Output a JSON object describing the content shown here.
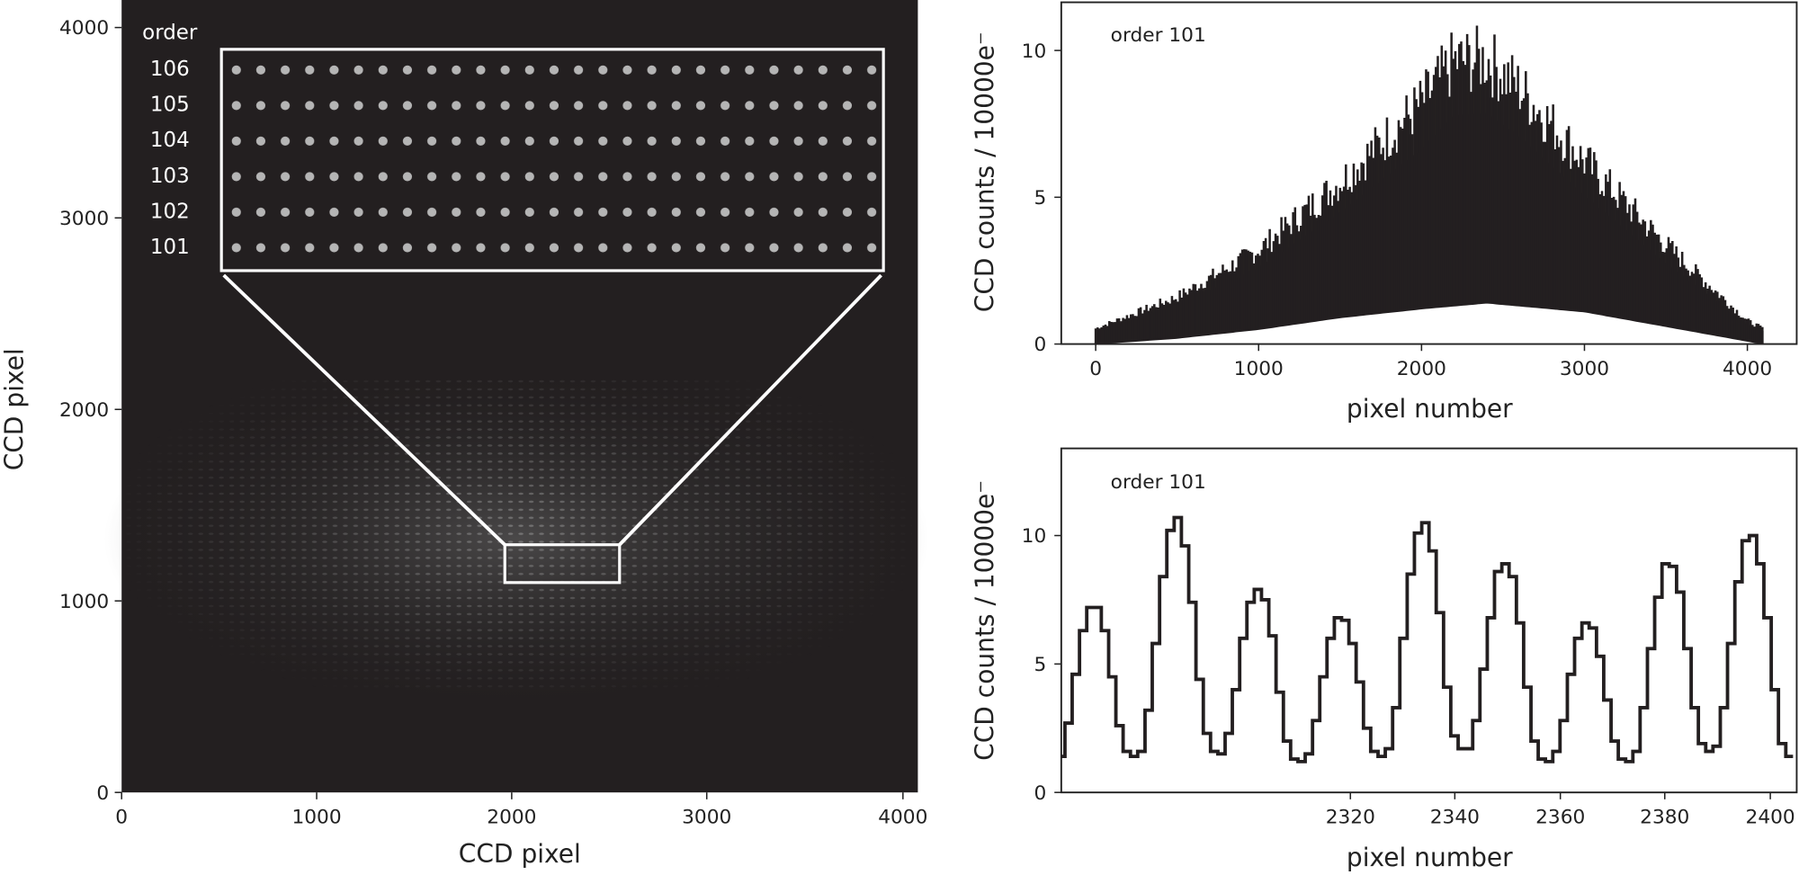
{
  "chart_data": [
    {
      "type": "heatmap",
      "title": "",
      "xlabel": "CCD pixel",
      "ylabel": "CCD pixel",
      "xlim": [
        0,
        4150
      ],
      "ylim": [
        0,
        4150
      ],
      "xticks": [
        "0",
        "1000",
        "2000",
        "3000",
        "4000"
      ],
      "yticks": [
        "0",
        "1000",
        "2000",
        "3000",
        "4000"
      ],
      "colormap": "gray",
      "description": "Simulated echelle CCD frame of laser frequency comb spots; signal concentrated between y~500 and y~2200",
      "zoom_box": {
        "x0": 2000,
        "x1": 2600,
        "y0": 1100,
        "y1": 1300
      },
      "inset": {
        "header": "order",
        "orders": [
          "106",
          "105",
          "104",
          "103",
          "102",
          "101"
        ]
      }
    },
    {
      "type": "line",
      "title": "",
      "annotation": "order 101",
      "xlabel": "pixel number",
      "ylabel": "CCD counts / 10000e⁻",
      "xlim": [
        -200,
        4200
      ],
      "ylim": [
        0,
        11.5
      ],
      "xticks": [
        "0",
        "1000",
        "2000",
        "3000",
        "4000"
      ],
      "yticks": [
        "0",
        "5",
        "10"
      ],
      "envelope": {
        "x": [
          0,
          500,
          1000,
          1500,
          2000,
          2200,
          2400,
          2600,
          3000,
          3500,
          4000,
          4096
        ],
        "upper": [
          0.6,
          1.8,
          3.6,
          6.2,
          9.2,
          10.8,
          10.9,
          9.8,
          7.0,
          3.8,
          0.9,
          0.6
        ],
        "lower": [
          0.0,
          0.2,
          0.5,
          0.9,
          1.2,
          1.3,
          1.4,
          1.3,
          1.1,
          0.6,
          0.1,
          0.0
        ]
      }
    },
    {
      "type": "line",
      "drawstyle": "steps-mid",
      "title": "",
      "annotation": "order 101",
      "xlabel": "pixel number",
      "ylabel": "CCD counts / 10000e⁻",
      "xlim": [
        2303,
        2404
      ],
      "ylim": [
        0,
        13.3
      ],
      "xticks": [
        "2320",
        "2340",
        "2360",
        "2380",
        "2400"
      ],
      "yticks": [
        "0",
        "5",
        "10"
      ],
      "x": [
        2303,
        2304,
        2305,
        2306,
        2307,
        2308,
        2309,
        2310,
        2311,
        2312,
        2313,
        2314,
        2315,
        2316,
        2317,
        2318,
        2319,
        2320,
        2321,
        2322,
        2323,
        2324,
        2325,
        2326,
        2327,
        2328,
        2329,
        2330,
        2331,
        2332,
        2333,
        2334,
        2335,
        2336,
        2337,
        2338,
        2339,
        2340,
        2341,
        2342,
        2343,
        2344,
        2345,
        2346,
        2347,
        2348,
        2349,
        2350,
        2351,
        2352,
        2353,
        2354,
        2355,
        2356,
        2357,
        2358,
        2359,
        2360,
        2361,
        2362,
        2363,
        2364,
        2365,
        2366,
        2367,
        2368,
        2369,
        2370,
        2371,
        2372,
        2373,
        2374,
        2375,
        2376,
        2377,
        2378,
        2379,
        2380,
        2381,
        2382,
        2383,
        2384,
        2385,
        2386,
        2387,
        2388,
        2389,
        2390,
        2391,
        2392,
        2393,
        2394,
        2395,
        2396,
        2397,
        2398,
        2399,
        2400,
        2401,
        2402,
        2403
      ],
      "values": [
        1.4,
        2.7,
        4.6,
        6.3,
        7.2,
        7.2,
        6.3,
        4.5,
        2.6,
        1.6,
        1.4,
        1.6,
        3.2,
        5.8,
        8.4,
        10.2,
        10.7,
        9.6,
        7.4,
        4.4,
        2.3,
        1.6,
        1.5,
        2.3,
        4.0,
        6.0,
        7.4,
        7.9,
        7.5,
        6.1,
        3.9,
        2.0,
        1.3,
        1.2,
        1.5,
        2.8,
        4.5,
        6.0,
        6.8,
        6.7,
        5.8,
        4.3,
        2.5,
        1.6,
        1.4,
        1.7,
        3.3,
        6.0,
        8.5,
        10.1,
        10.5,
        9.4,
        7.0,
        4.1,
        2.2,
        1.7,
        1.7,
        2.8,
        4.8,
        6.8,
        8.6,
        8.9,
        8.4,
        6.6,
        4.1,
        2.0,
        1.3,
        1.2,
        1.6,
        2.8,
        4.6,
        6.0,
        6.6,
        6.4,
        5.3,
        3.6,
        2.0,
        1.3,
        1.2,
        1.6,
        3.3,
        5.6,
        7.6,
        8.9,
        8.8,
        7.8,
        5.6,
        3.3,
        1.9,
        1.6,
        1.8,
        3.3,
        5.8,
        8.2,
        9.8,
        10.0,
        8.9,
        6.8,
        4.0,
        1.9,
        1.4
      ]
    }
  ]
}
